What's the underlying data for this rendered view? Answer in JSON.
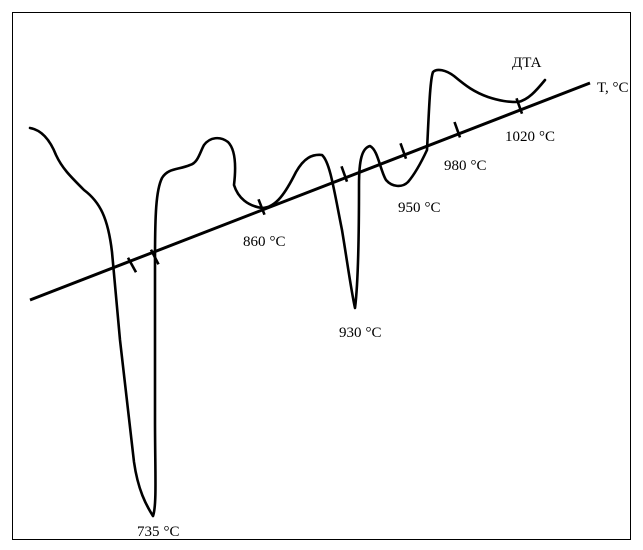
{
  "chart_data": {
    "type": "line",
    "curve_label": "ДТА",
    "axis_label": "T, °C",
    "annotations": [
      {
        "value": "735",
        "unit": "°C"
      },
      {
        "value": "860",
        "unit": "°C"
      },
      {
        "value": "930",
        "unit": "°C"
      },
      {
        "value": "950",
        "unit": "°C"
      },
      {
        "value": "980",
        "unit": "°C"
      },
      {
        "value": "1020",
        "unit": "°C"
      }
    ],
    "colors": {
      "line": "#000000",
      "background": "#ffffff",
      "frame": "#000000"
    }
  }
}
